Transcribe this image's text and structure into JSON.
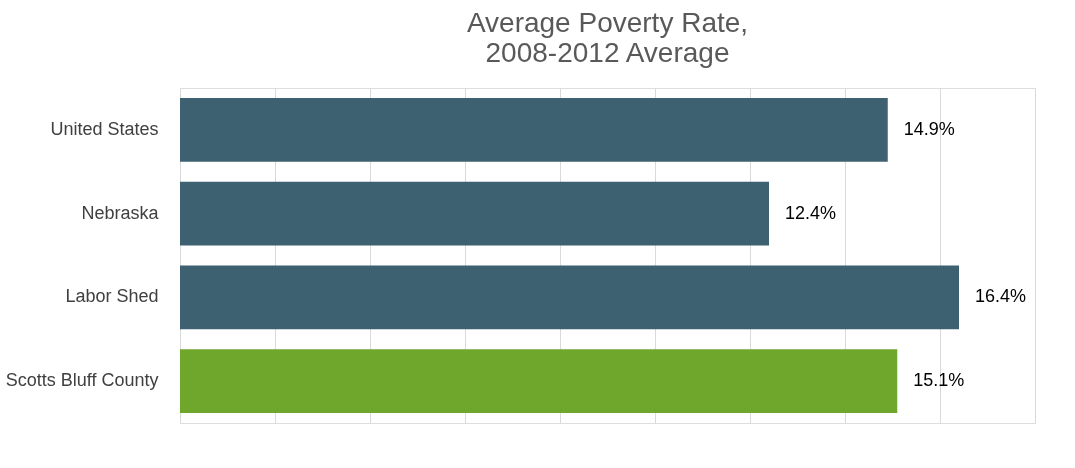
{
  "chart_data": {
    "type": "bar",
    "orientation": "horizontal",
    "title": "Average Poverty Rate,\n2008-2012 Average",
    "categories": [
      "United States",
      "Nebraska",
      "Labor Shed",
      "Scotts Bluff County"
    ],
    "values": [
      14.9,
      12.4,
      16.4,
      15.1
    ],
    "colors": [
      "#3e6171",
      "#3e6171",
      "#3e6171",
      "#6fa62c"
    ],
    "value_labels": [
      "14.9%",
      "12.4%",
      "16.4%",
      "15.1%"
    ],
    "xlim": [
      0,
      18
    ],
    "xticks": [
      {
        "value": 0,
        "label": null
      },
      {
        "value": 2,
        "label": null
      },
      {
        "value": 4,
        "label": null
      },
      {
        "value": 6,
        "label": null
      },
      {
        "value": 8,
        "label": null
      },
      {
        "value": 10,
        "label": null
      },
      {
        "value": 12,
        "label": null
      },
      {
        "value": 14,
        "label": null
      },
      {
        "value": 16,
        "label": null
      },
      {
        "value": 18,
        "label": null
      }
    ],
    "grid": "x",
    "tick_labels": "y"
  }
}
